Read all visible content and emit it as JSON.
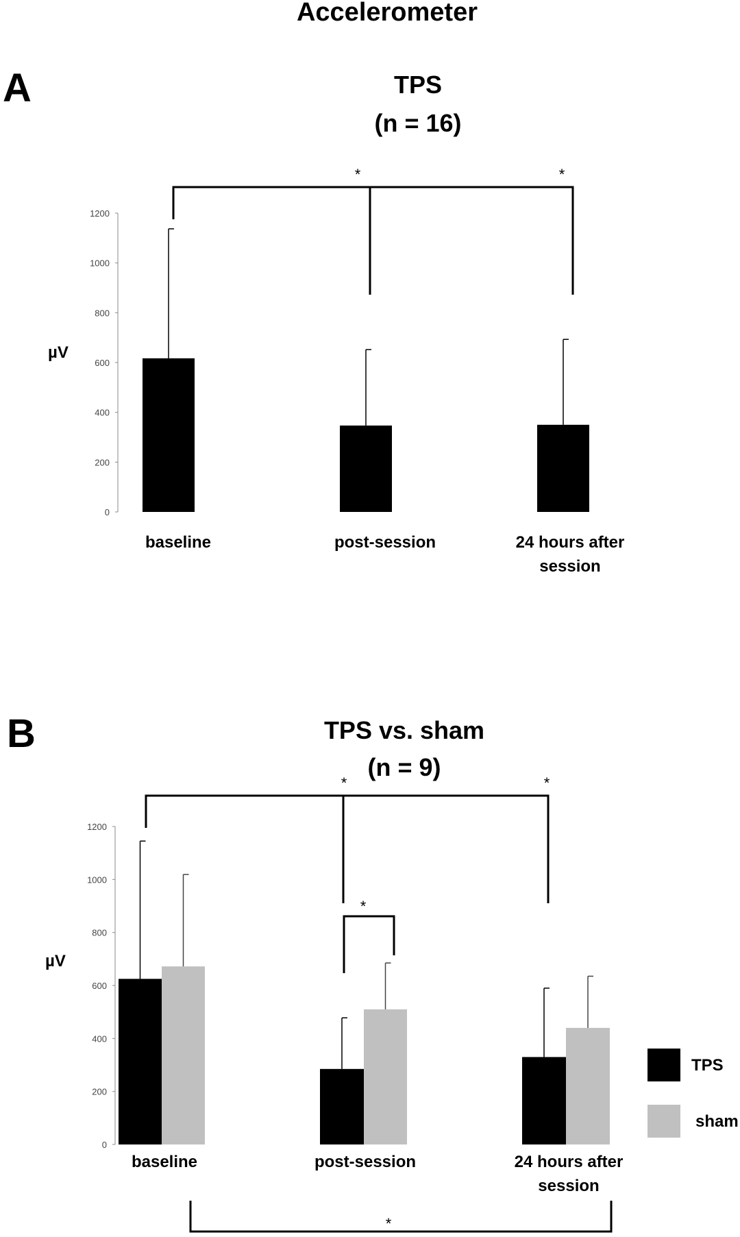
{
  "figure": {
    "title": "Accelerometer"
  },
  "chart_data": [
    {
      "type": "bar",
      "panel": "A",
      "title": "TPS",
      "subtitle": "(n = 16)",
      "ylabel": "µV",
      "ylim": [
        0,
        1200
      ],
      "yticks": [
        0,
        200,
        400,
        600,
        800,
        1000,
        1200
      ],
      "categories": [
        "baseline",
        "post-session",
        "24 hours after session"
      ],
      "series": [
        {
          "values": [
            617,
            347,
            350
          ],
          "errors": [
            520,
            305,
            343
          ],
          "color": "#000000"
        }
      ],
      "significance": [
        {
          "between": [
            "baseline",
            "post-session"
          ],
          "label": "*"
        },
        {
          "between": [
            "baseline",
            "24 hours after session"
          ],
          "label": "*"
        }
      ]
    },
    {
      "type": "bar",
      "panel": "B",
      "title": "TPS vs. sham",
      "subtitle": "(n = 9)",
      "ylabel": "µV",
      "ylim": [
        0,
        1200
      ],
      "yticks": [
        0,
        200,
        400,
        600,
        800,
        1000,
        1200
      ],
      "categories": [
        "baseline",
        "post-session",
        "24 hours after session"
      ],
      "series": [
        {
          "name": "TPS",
          "values": [
            625,
            285,
            330
          ],
          "errors": [
            520,
            193,
            260
          ],
          "color": "#000000"
        },
        {
          "name": "sham",
          "values": [
            672,
            510,
            440
          ],
          "errors": [
            347,
            175,
            195
          ],
          "color": "#c0c0c0"
        }
      ],
      "legend": "right",
      "significance": [
        {
          "between": [
            "TPS baseline",
            "TPS post-session"
          ],
          "label": "*"
        },
        {
          "between": [
            "TPS baseline",
            "TPS 24 hours after session"
          ],
          "label": "*"
        },
        {
          "between": [
            "TPS post-session",
            "sham post-session"
          ],
          "label": "*"
        },
        {
          "between": [
            "baseline",
            "24 hours after session"
          ],
          "label": "*"
        }
      ]
    }
  ]
}
